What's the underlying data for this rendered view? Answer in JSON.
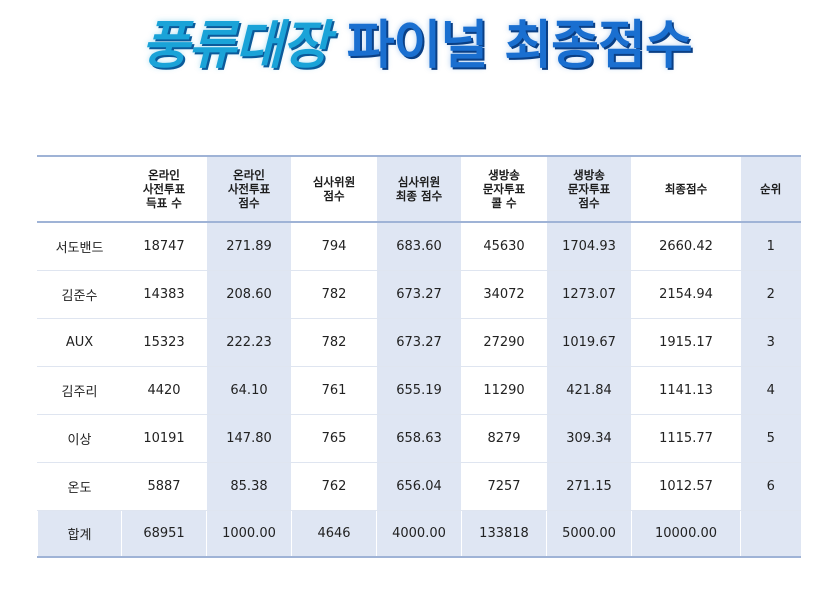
{
  "title": {
    "part1": "풍류대장",
    "part2": "파이널 최종점수"
  },
  "table": {
    "headers": [
      "",
      "온라인\n사전투표\n득표 수",
      "온라인\n사전투표\n점수",
      "심사위원\n점수",
      "심사위원\n최종 점수",
      "생방송\n문자투표\n콜 수",
      "생방송\n문자투표\n점수",
      "최종점수",
      "순위"
    ],
    "rows": [
      [
        "서도밴드",
        "18747",
        "271.89",
        "794",
        "683.60",
        "45630",
        "1704.93",
        "2660.42",
        "1"
      ],
      [
        "김준수",
        "14383",
        "208.60",
        "782",
        "673.27",
        "34072",
        "1273.07",
        "2154.94",
        "2"
      ],
      [
        "AUX",
        "15323",
        "222.23",
        "782",
        "673.27",
        "27290",
        "1019.67",
        "1915.17",
        "3"
      ],
      [
        "김주리",
        "4420",
        "64.10",
        "761",
        "655.19",
        "11290",
        "421.84",
        "1141.13",
        "4"
      ],
      [
        "이상",
        "10191",
        "147.80",
        "765",
        "658.63",
        "8279",
        "309.34",
        "1115.77",
        "5"
      ],
      [
        "온도",
        "5887",
        "85.38",
        "762",
        "656.04",
        "7257",
        "271.15",
        "1012.57",
        "6"
      ],
      [
        "합계",
        "68951",
        "1000.00",
        "4646",
        "4000.00",
        "133818",
        "5000.00",
        "10000.00",
        ""
      ]
    ]
  },
  "colors": {
    "title_part1": "#1aa3d8",
    "title_part2": "#1a6fd0",
    "shaded_column": "#dfe6f3",
    "table_rule": "#9fb3d6"
  }
}
